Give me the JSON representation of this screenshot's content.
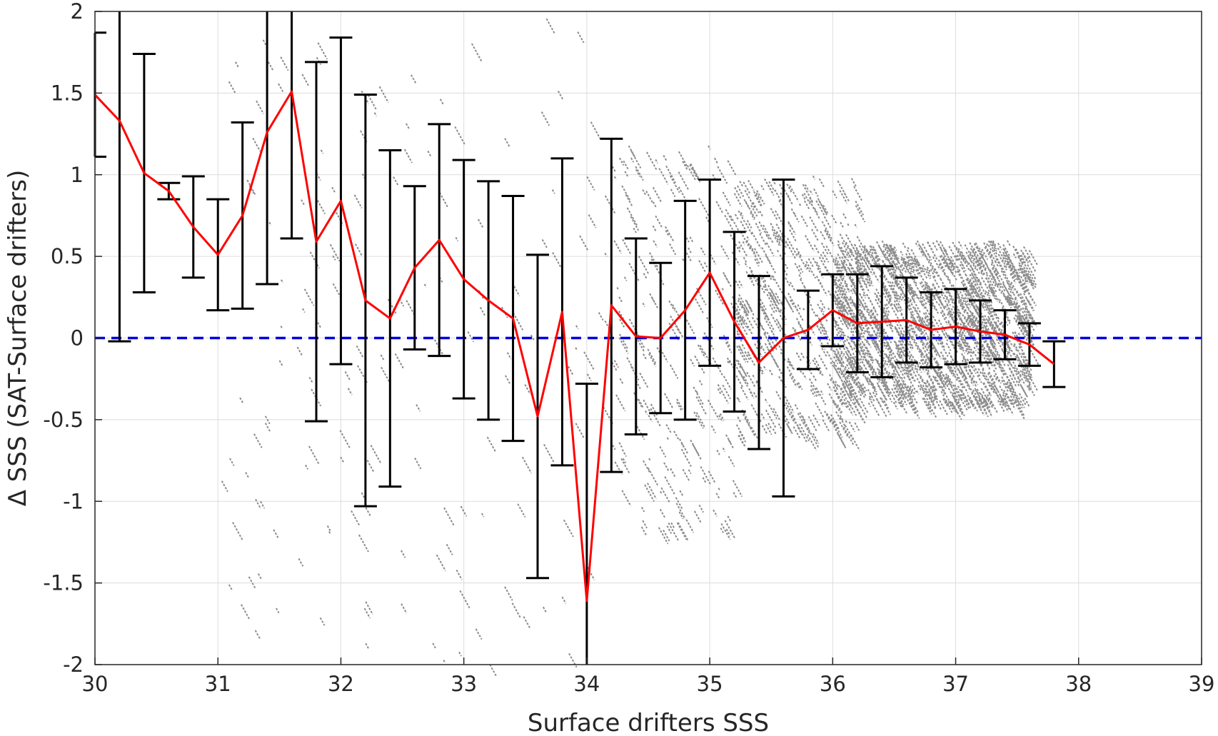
{
  "chart_data": {
    "type": "scatter",
    "xlabel": "Surface drifters SSS",
    "ylabel": "Δ SSS (SAT-Surface drifters)",
    "xlim": [
      30,
      39
    ],
    "ylim": [
      -2,
      2
    ],
    "x_ticks": [
      "30",
      "31",
      "32",
      "33",
      "34",
      "35",
      "36",
      "37",
      "38",
      "39"
    ],
    "y_ticks": [
      "2",
      "1.5",
      "1",
      "0.5",
      "0",
      "-0.5",
      "-1",
      "-1.5",
      "-2"
    ],
    "x_tick_values": [
      30,
      31,
      32,
      33,
      34,
      35,
      36,
      37,
      38,
      39
    ],
    "y_tick_values": [
      2,
      1.5,
      1,
      0.5,
      0,
      -0.5,
      -1,
      -1.5,
      -2
    ],
    "grid": true,
    "colors": {
      "scatter": "#8c8c8c",
      "mean_line": "#ff0000",
      "error_bars": "#000000",
      "zero_line": "#0000e6",
      "axes": "#262626",
      "grid": "#dcdcdc"
    },
    "zero_reference": {
      "y": 0,
      "style": "dashed"
    },
    "bin_mean": {
      "x": [
        30.0,
        30.2,
        30.4,
        30.6,
        30.8,
        31.0,
        31.2,
        31.4,
        31.6,
        31.8,
        32.0,
        32.2,
        32.4,
        32.6,
        32.8,
        33.0,
        33.2,
        33.4,
        33.6,
        33.8,
        34.0,
        34.2,
        34.4,
        34.6,
        34.8,
        35.0,
        35.2,
        35.4,
        35.6,
        35.8,
        36.0,
        36.2,
        36.4,
        36.6,
        36.8,
        37.0,
        37.2,
        37.4,
        37.6,
        37.8
      ],
      "mean": [
        1.49,
        1.33,
        1.01,
        0.9,
        0.68,
        0.51,
        0.75,
        1.26,
        1.51,
        0.59,
        0.84,
        0.23,
        0.12,
        0.43,
        0.6,
        0.36,
        0.23,
        0.12,
        -0.48,
        0.16,
        -1.61,
        0.2,
        0.01,
        0.0,
        0.17,
        0.4,
        0.1,
        -0.15,
        0.0,
        0.05,
        0.17,
        0.09,
        0.1,
        0.11,
        0.05,
        0.07,
        0.04,
        0.02,
        -0.04,
        -0.16
      ],
      "std": [
        0.38,
        1.35,
        0.73,
        0.05,
        0.31,
        0.34,
        0.57,
        0.93,
        0.9,
        1.1,
        1.0,
        1.26,
        1.03,
        0.5,
        0.71,
        0.73,
        0.73,
        0.75,
        0.99,
        0.94,
        1.33,
        1.02,
        0.6,
        0.46,
        0.67,
        0.57,
        0.55,
        0.53,
        0.97,
        0.24,
        0.22,
        0.3,
        0.34,
        0.26,
        0.23,
        0.23,
        0.19,
        0.15,
        0.13,
        0.14
      ]
    },
    "scatter_clusters": [
      {
        "x": [
          36.0,
          37.6
        ],
        "y": [
          -0.4,
          0.6
        ],
        "density": "very high"
      },
      {
        "x": [
          35.2,
          36.2
        ],
        "y": [
          -0.6,
          1.0
        ],
        "density": "high"
      },
      {
        "x": [
          34.2,
          35.2
        ],
        "y": [
          -1.2,
          1.2
        ],
        "density": "medium"
      },
      {
        "x": [
          31.0,
          34.2
        ],
        "y": [
          -2.0,
          2.0
        ],
        "density": "low"
      }
    ]
  }
}
